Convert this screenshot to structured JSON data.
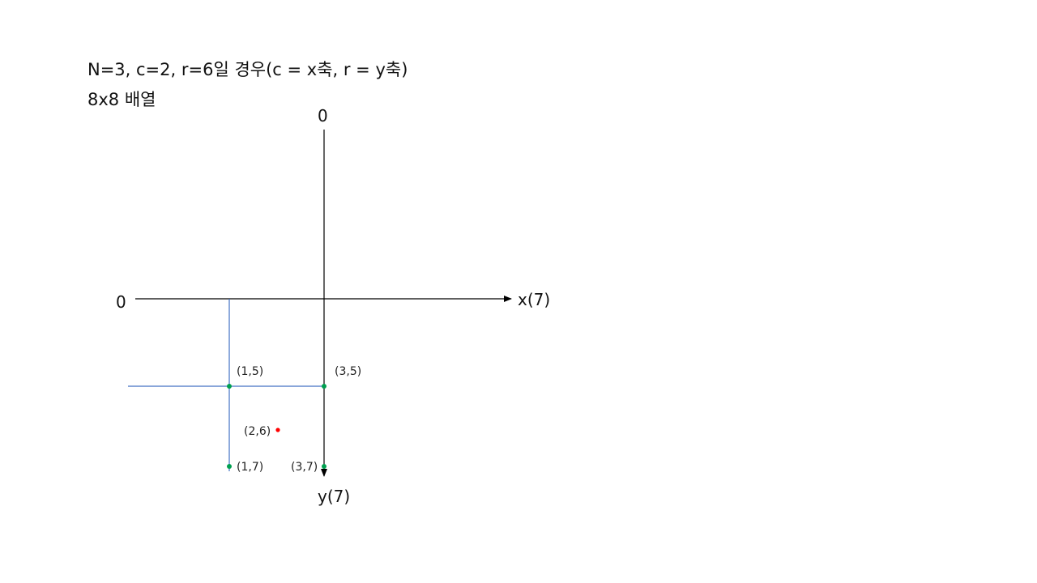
{
  "header": {
    "line1": "N=3, c=2, r=6일 경우(c = x축, r = y축)",
    "line2": "8x8 배열"
  },
  "axes": {
    "y_top_label": "0",
    "x_left_label": "0",
    "x_end_label": "x(7)",
    "y_end_label": "y(7)"
  },
  "points": [
    {
      "label": "(1,5)",
      "color": "#00a050"
    },
    {
      "label": "(3,5)",
      "color": "#00a050"
    },
    {
      "label": "(2,6)",
      "color": "#ff0000"
    },
    {
      "label": "(1,7)",
      "color": "#00a050"
    },
    {
      "label": "(3,7)",
      "color": "#00a050"
    }
  ],
  "colors": {
    "axis": "#000000",
    "guide_line": "#4472c4",
    "point": "#00a050",
    "target_point": "#ff0000"
  }
}
